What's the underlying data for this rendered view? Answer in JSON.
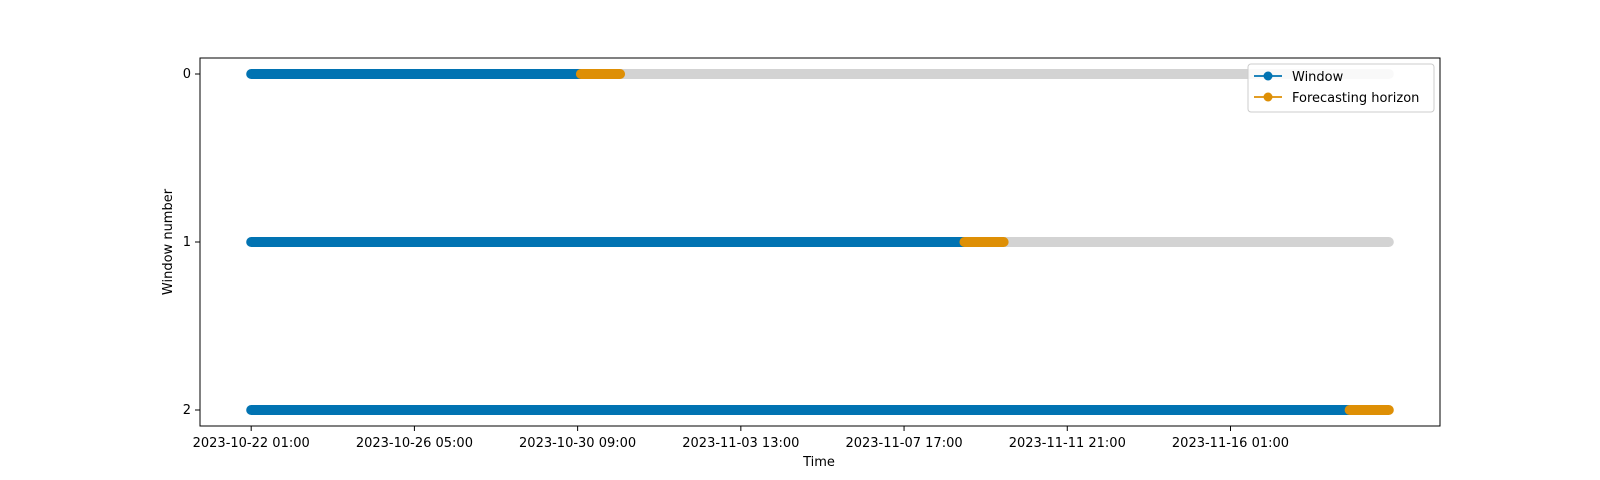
{
  "chart_data": {
    "type": "scatter",
    "title": "",
    "xlabel": "Time",
    "ylabel": "Window number",
    "x_tick_labels": [
      "2023-10-22 01:00",
      "2023-10-26 05:00",
      "2023-10-30 09:00",
      "2023-11-03 13:00",
      "2023-11-07 17:00",
      "2023-11-11 21:00",
      "2023-11-16 01:00"
    ],
    "y_tick_labels": [
      "0",
      "1",
      "2"
    ],
    "x_range": [
      "2023-10-22 01:00",
      "2023-11-20 02:00"
    ],
    "y_range": [
      0,
      2
    ],
    "y_inverted": true,
    "grid": false,
    "legend_position": "top-right",
    "legend": [
      {
        "label": "Window",
        "color": "#0173b2"
      },
      {
        "label": "Forecasting horizon",
        "color": "#de8f05"
      }
    ],
    "unused_color": "#d3d3d3",
    "windows": [
      {
        "window": 0,
        "training_start": "2023-10-22 01:00",
        "training_end": "2023-10-30 11:00",
        "horizon_start": "2023-10-30 11:00",
        "horizon_end": "2023-10-31 11:00",
        "unused_end": "2023-11-20 02:00"
      },
      {
        "window": 1,
        "training_start": "2023-10-22 01:00",
        "training_end": "2023-11-09 06:00",
        "horizon_start": "2023-11-09 06:00",
        "horizon_end": "2023-11-10 06:00",
        "unused_end": "2023-11-20 02:00"
      },
      {
        "window": 2,
        "training_start": "2023-10-22 01:00",
        "training_end": "2023-11-19 02:00",
        "horizon_start": "2023-11-19 02:00",
        "horizon_end": "2023-11-20 02:00",
        "unused_end": null
      }
    ]
  }
}
